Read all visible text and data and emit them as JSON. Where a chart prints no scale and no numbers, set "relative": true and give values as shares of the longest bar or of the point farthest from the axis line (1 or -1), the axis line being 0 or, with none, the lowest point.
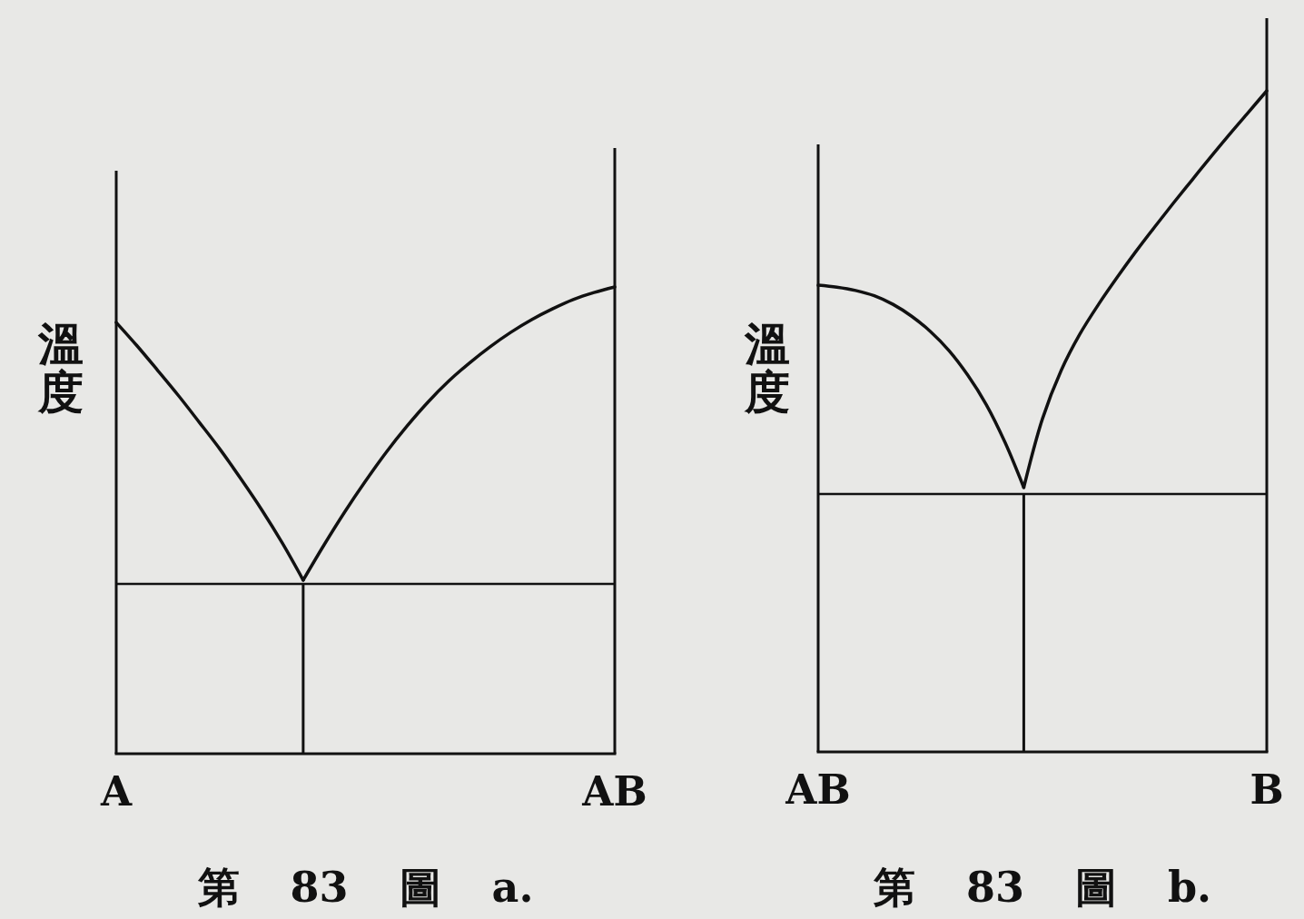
{
  "chart_data": [
    {
      "type": "line",
      "title": "第 83 圖 a.",
      "ylabel": "溫度",
      "relative": true,
      "tick_labels": "x",
      "categories": [
        "A",
        null,
        null,
        null,
        null,
        null,
        null,
        null,
        null,
        null,
        null,
        null,
        null,
        null,
        null,
        null,
        null,
        null,
        null,
        null,
        null,
        null,
        null,
        null,
        "AB"
      ],
      "series": [
        {
          "color": "#111111",
          "values": [
            0.924,
            0.874,
            0.821,
            0.767,
            0.71,
            0.652,
            0.589,
            0.523,
            0.451,
            0.372,
            null,
            null,
            null,
            null,
            null,
            null,
            null,
            null,
            null,
            null,
            null,
            null,
            null,
            null,
            null
          ]
        },
        {
          "color": "#111111",
          "values": [
            null,
            null,
            null,
            null,
            null,
            null,
            null,
            null,
            null,
            0.372,
            0.447,
            0.518,
            0.584,
            0.646,
            0.702,
            0.753,
            0.798,
            0.837,
            0.872,
            0.903,
            0.93,
            0.953,
            0.973,
            0.988,
            1
          ]
        },
        {
          "type": "bar",
          "color": "#111111",
          "values": [
            null,
            null,
            null,
            null,
            null,
            null,
            null,
            null,
            null,
            0.364,
            null,
            null,
            null,
            null,
            null,
            null,
            null,
            null,
            null,
            null,
            null,
            null,
            null,
            null,
            null
          ]
        }
      ],
      "ref_lines": [
        {
          "axis": "y",
          "value": 0.364,
          "color": "#111111"
        }
      ]
    },
    {
      "type": "line",
      "title": "第 83 圖 b.",
      "ylabel": "溫度",
      "relative": true,
      "tick_labels": "x",
      "categories": [
        "AB",
        null,
        null,
        null,
        null,
        null,
        null,
        null,
        null,
        null,
        null,
        null,
        null,
        null,
        null,
        null,
        null,
        null,
        null,
        null,
        null,
        null,
        null,
        null,
        "B"
      ],
      "series": [
        {
          "color": "#111111",
          "values": [
            0.706,
            0.703,
            0.698,
            0.69,
            0.677,
            0.659,
            0.636,
            0.607,
            0.57,
            0.525,
            0.468,
            0.4,
            null,
            null,
            null,
            null,
            null,
            null,
            null,
            null,
            null,
            null,
            null,
            null,
            null
          ]
        },
        {
          "color": "#111111",
          "values": [
            null,
            null,
            null,
            null,
            null,
            null,
            null,
            null,
            null,
            null,
            null,
            0.4,
            0.504,
            0.577,
            0.632,
            0.677,
            0.718,
            0.757,
            0.794,
            0.83,
            0.865,
            0.9,
            0.934,
            0.967,
            1
          ]
        },
        {
          "type": "bar",
          "color": "#111111",
          "values": [
            null,
            null,
            null,
            null,
            null,
            null,
            null,
            null,
            null,
            null,
            null,
            0.39,
            null,
            null,
            null,
            null,
            null,
            null,
            null,
            null,
            null,
            null,
            null,
            null,
            null
          ]
        }
      ],
      "ref_lines": [
        {
          "axis": "y",
          "value": 0.39,
          "color": "#111111"
        }
      ]
    }
  ]
}
